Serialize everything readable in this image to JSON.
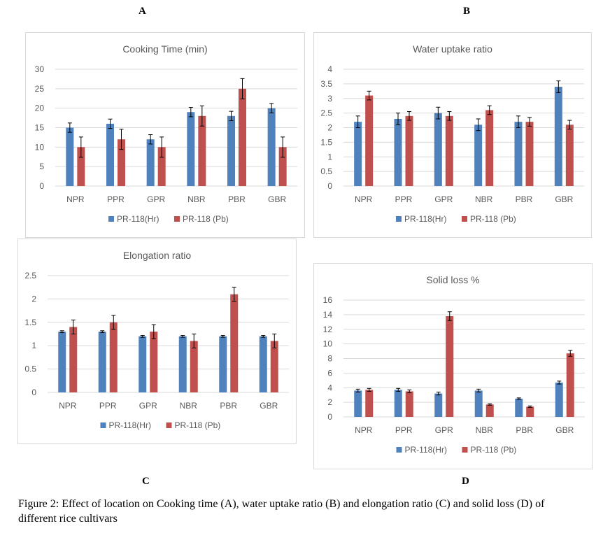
{
  "panel_labels": {
    "a": "A",
    "b": "B",
    "c": "C",
    "d": "D"
  },
  "caption": "Figure 2: Effect of location on Cooking time (A), water uptake ratio (B) and elongation ratio (C) and solid loss (D) of different rice cultivars",
  "colors": {
    "series1": "#4f81bd",
    "series2": "#c0504d",
    "grid": "#d9d9d9",
    "axis_text": "#595959",
    "error_bar": "#000000"
  },
  "chart_data": [
    {
      "type": "bar",
      "title": "Cooking Time (min)",
      "categories": [
        "NPR",
        "PPR",
        "GPR",
        "NBR",
        "PBR",
        "GBR"
      ],
      "ylim": [
        0,
        30
      ],
      "yticks": [
        0,
        5,
        10,
        15,
        20,
        25,
        30
      ],
      "tick_labels": [
        "0",
        "5",
        "10",
        "15",
        "20",
        "25",
        "30"
      ],
      "grid": true,
      "legend_position": "bottom",
      "series": [
        {
          "name": "PR-118(Hr)",
          "values": [
            15,
            16,
            12,
            19,
            18,
            20
          ],
          "errors": [
            1.2,
            1.2,
            1.2,
            1.2,
            1.2,
            1.2
          ]
        },
        {
          "name": "PR-118 (Pb)",
          "values": [
            10,
            12,
            10,
            18,
            25,
            10
          ],
          "errors": [
            2.6,
            2.6,
            2.6,
            2.6,
            2.6,
            2.6
          ]
        }
      ]
    },
    {
      "type": "bar",
      "title": "Water uptake ratio",
      "categories": [
        "NPR",
        "PPR",
        "GPR",
        "NBR",
        "PBR",
        "GBR"
      ],
      "ylim": [
        0,
        4
      ],
      "yticks": [
        0,
        0.5,
        1,
        1.5,
        2,
        2.5,
        3,
        3.5,
        4
      ],
      "tick_labels": [
        "0",
        "0.5",
        "1",
        "1.5",
        "2",
        "2.5",
        "3",
        "3.5",
        "4"
      ],
      "grid": true,
      "legend_position": "bottom",
      "series": [
        {
          "name": "PR-118(Hr)",
          "values": [
            2.2,
            2.3,
            2.5,
            2.1,
            2.2,
            3.4
          ],
          "errors": [
            0.2,
            0.2,
            0.2,
            0.2,
            0.2,
            0.2
          ]
        },
        {
          "name": "PR-118 (Pb)",
          "values": [
            3.1,
            2.4,
            2.4,
            2.6,
            2.2,
            2.1
          ],
          "errors": [
            0.15,
            0.15,
            0.15,
            0.15,
            0.15,
            0.15
          ]
        }
      ]
    },
    {
      "type": "bar",
      "title": "Elongation ratio",
      "categories": [
        "NPR",
        "PPR",
        "GPR",
        "NBR",
        "PBR",
        "GBR"
      ],
      "ylim": [
        0,
        2.5
      ],
      "yticks": [
        0,
        0.5,
        1,
        1.5,
        2,
        2.5
      ],
      "tick_labels": [
        "0",
        "0.5",
        "1",
        "1.5",
        "2",
        "2.5"
      ],
      "grid": true,
      "legend_position": "bottom",
      "series": [
        {
          "name": "PR-118(Hr)",
          "values": [
            1.3,
            1.3,
            1.2,
            1.2,
            1.2,
            1.2
          ],
          "errors": [
            0.02,
            0.02,
            0.02,
            0.02,
            0.02,
            0.02
          ]
        },
        {
          "name": "PR-118 (Pb)",
          "values": [
            1.4,
            1.5,
            1.3,
            1.1,
            2.1,
            1.1
          ],
          "errors": [
            0.15,
            0.15,
            0.15,
            0.15,
            0.15,
            0.15
          ]
        }
      ]
    },
    {
      "type": "bar",
      "title": "Solid loss %",
      "categories": [
        "NPR",
        "PPR",
        "GPR",
        "NBR",
        "PBR",
        "GBR"
      ],
      "ylim": [
        0,
        16
      ],
      "yticks": [
        0,
        2,
        4,
        6,
        8,
        10,
        12,
        14,
        16
      ],
      "tick_labels": [
        "0",
        "2",
        "4",
        "6",
        "8",
        "10",
        "12",
        "14",
        "16"
      ],
      "grid": true,
      "legend_position": "bottom",
      "series": [
        {
          "name": "PR-118(Hr)",
          "values": [
            3.6,
            3.7,
            3.2,
            3.6,
            2.5,
            4.7
          ],
          "errors": [
            0.2,
            0.2,
            0.2,
            0.2,
            0.1,
            0.2
          ]
        },
        {
          "name": "PR-118 (Pb)",
          "values": [
            3.7,
            3.5,
            13.8,
            1.7,
            1.4,
            8.7
          ],
          "errors": [
            0.2,
            0.2,
            0.6,
            0.1,
            0.1,
            0.4
          ]
        }
      ]
    }
  ]
}
